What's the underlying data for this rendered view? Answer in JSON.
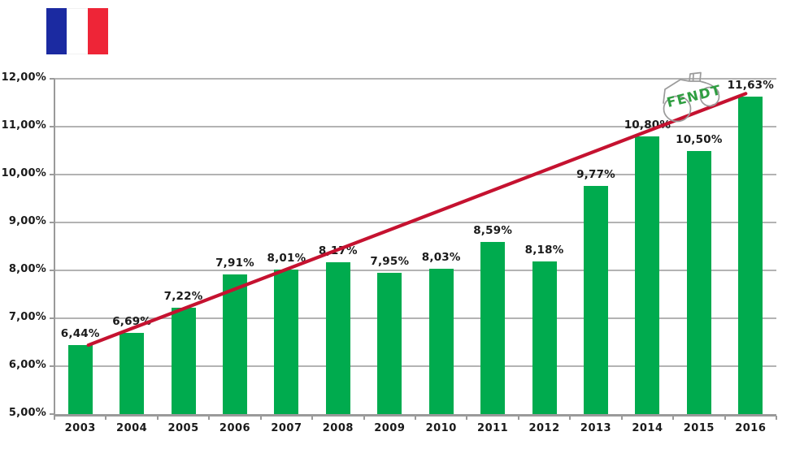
{
  "flag": {
    "name": "flag-of-france",
    "colors": {
      "blue": "#1b2aa1",
      "white": "#ffffff",
      "red": "#ee2537"
    }
  },
  "logo": {
    "text": "FENDT",
    "text_color": "#2f9e41",
    "sketch_color": "#9b9b9b"
  },
  "chart_data": {
    "type": "bar",
    "title": "",
    "xlabel": "",
    "ylabel": "",
    "categories": [
      "2003",
      "2004",
      "2005",
      "2006",
      "2007",
      "2008",
      "2009",
      "2010",
      "2011",
      "2012",
      "2013",
      "2014",
      "2015",
      "2016"
    ],
    "values": [
      6.44,
      6.69,
      7.22,
      7.91,
      8.01,
      8.17,
      7.95,
      8.03,
      8.59,
      8.18,
      9.77,
      10.8,
      10.5,
      11.63
    ],
    "value_labels": [
      "6,44%",
      "6,69%",
      "7,22%",
      "7,91%",
      "8,01%",
      "8,17%",
      "7,95%",
      "8,03%",
      "8,59%",
      "8,18%",
      "9,77%",
      "10,80%",
      "10,50%",
      "11,63%"
    ],
    "ylim": [
      5,
      12
    ],
    "ytick_values": [
      5,
      6,
      7,
      8,
      9,
      10,
      11,
      12
    ],
    "ytick_labels": [
      "5,00%",
      "6,00%",
      "7,00%",
      "8,00%",
      "9,00%",
      "10,00%",
      "11,00%",
      "12,00%"
    ],
    "grid": true,
    "legend": "none",
    "bar_color": "#00ab4e",
    "axis_color": "#9a9a9a",
    "grid_color": "#b3b3b3",
    "label_color": "#1a1a1a",
    "trendline": {
      "type": "linear",
      "color": "#c51230",
      "start": {
        "category": "2003",
        "value": 6.44
      },
      "end": {
        "category": "2016",
        "value": 11.69
      }
    }
  }
}
